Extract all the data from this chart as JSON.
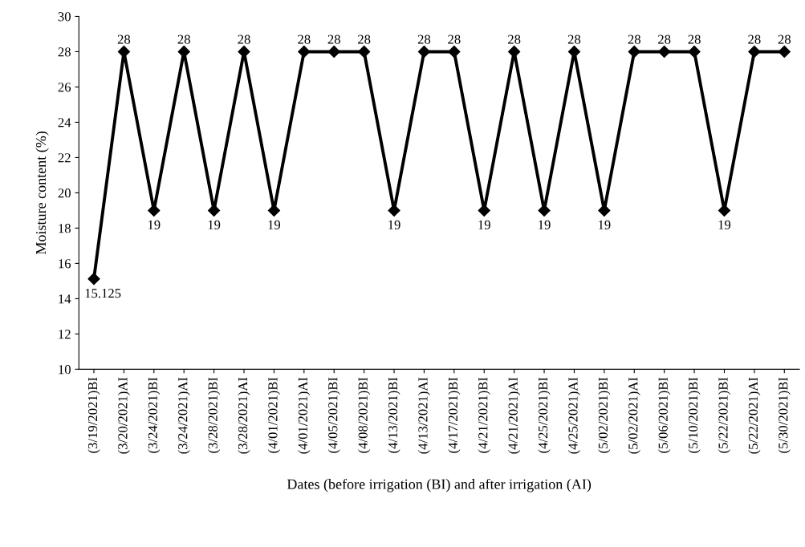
{
  "chart_data": {
    "type": "line",
    "xlabel": "Dates (before irrigation (BI) and after irrigation (AI)",
    "ylabel": "Moisture content (%)",
    "categories": [
      "(3/19/2021)BI",
      "(3/20/2021)AI",
      "(3/24/2021)BI",
      "(3/24/2021)AI",
      "(3/28/2021)BI",
      "(3/28/2021)AI",
      "(4/01/2021)BI",
      "(4/01/2021)AI",
      "(4/05/2021)BI",
      "(4/08/2021)BI",
      "(4/13/2021)BI",
      "(4/13/2021)AI",
      "(4/17/2021)BI",
      "(4/21/2021)BI",
      "(4/21/2021)AI",
      "(4/25/2021)BI",
      "(4/25/2021)AI",
      "(5/02/2021)BI",
      "(5/02/2021)AI",
      "(5/06/2021)BI",
      "(5/10/2021)BI",
      "(5/22/2021)BI",
      "(5/22/2021)AI",
      "(5/30/2021)BI"
    ],
    "series": [
      {
        "color": "#000000",
        "values": [
          15.125,
          28,
          19,
          28,
          19,
          28,
          19,
          28,
          28,
          28,
          19,
          28,
          28,
          19,
          28,
          19,
          28,
          19,
          28,
          28,
          28,
          19,
          28,
          28
        ]
      }
    ],
    "ylim": [
      10,
      30
    ],
    "yticks": [
      10,
      12,
      14,
      16,
      18,
      20,
      22,
      24,
      26,
      28,
      30
    ],
    "marker": "diamond",
    "line_style": "solid",
    "grid": false,
    "data_labels": true
  }
}
